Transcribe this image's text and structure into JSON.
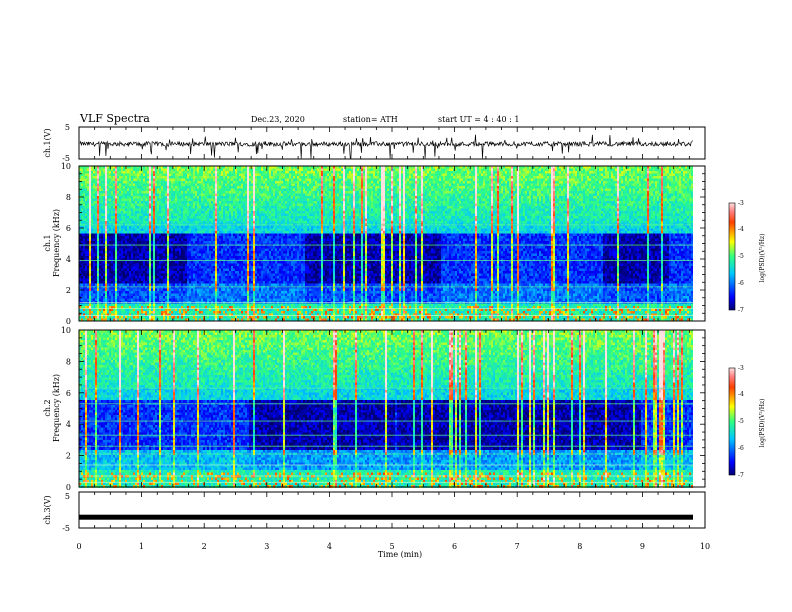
{
  "header": {
    "title": "VLF Spectra",
    "date": "Dec.23, 2020",
    "station": "station= ATH",
    "start": "start  UT =   4 : 40 : 1"
  },
  "chart_data": [
    {
      "type": "line",
      "panel": "ch1-waveform",
      "ylabel": "ch.1(V)",
      "ylim": [
        -5,
        5
      ],
      "yticks": [
        {
          "v": 5,
          "t": "5"
        },
        {
          "v": -5,
          "t": "-5"
        }
      ],
      "xlim": [
        0,
        10
      ],
      "color": "#000000"
    },
    {
      "type": "heatmap",
      "panel": "ch1-spectrogram",
      "label_top": "ch.1",
      "ylabel": "Frequency (kHz)",
      "ylim": [
        0,
        10
      ],
      "xlim": [
        0,
        9.8
      ],
      "yticks": [
        0,
        2,
        4,
        6,
        8,
        10
      ],
      "colorbar": {
        "label": "log(PSD)(V²/Hz)",
        "range": [
          -7,
          -3
        ],
        "ticks": [
          "-3",
          "-4",
          "-5",
          "-6",
          "-7"
        ]
      }
    },
    {
      "type": "heatmap",
      "panel": "ch2-spectrogram",
      "label_top": "ch.2",
      "ylabel": "Frequency (kHz)",
      "ylim": [
        0,
        10
      ],
      "xlim": [
        0,
        9.8
      ],
      "yticks": [
        0,
        2,
        4,
        6,
        8,
        10
      ],
      "colorbar": {
        "label": "log(PSD)(V²/Hz)",
        "range": [
          -7,
          -3
        ],
        "ticks": [
          "-3",
          "-4",
          "-5",
          "-6",
          "-7"
        ]
      }
    },
    {
      "type": "line",
      "panel": "ch3-waveform",
      "ylabel": "ch.3(V)",
      "ylim": [
        -5,
        5
      ],
      "yticks": [
        {
          "v": 5,
          "t": "5"
        },
        {
          "v": -5,
          "t": "-5"
        }
      ],
      "xlim": [
        0,
        10
      ],
      "xlabel": "Time (min)",
      "xticks": [
        "0",
        "1",
        "2",
        "3",
        "4",
        "5",
        "6",
        "7",
        "8",
        "9",
        "10"
      ],
      "constant_value": -2,
      "color": "#000000"
    }
  ]
}
